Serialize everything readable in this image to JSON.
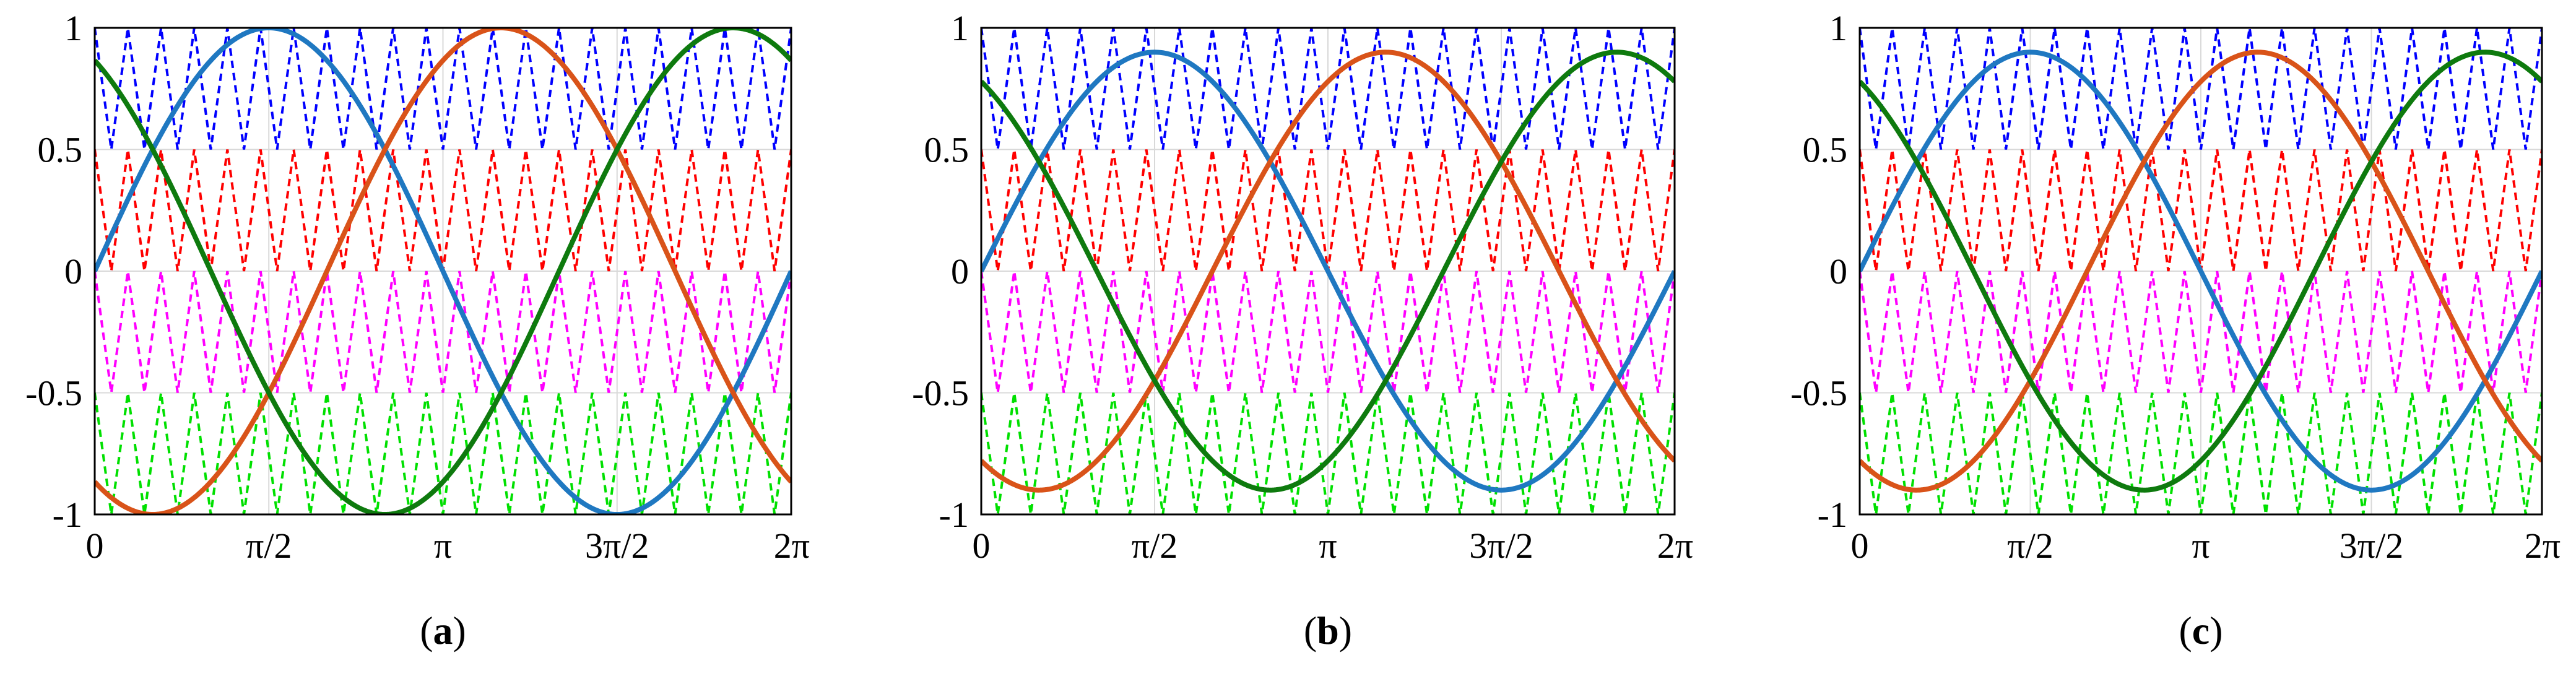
{
  "colors": {
    "phase_a": "#1f78c1",
    "phase_b": "#d95319",
    "phase_c": "#0e7a0e",
    "carrier_1": "#0000ff",
    "carrier_2": "#ff0000",
    "carrier_3": "#ff00ff",
    "carrier_4": "#00e000",
    "grid": "#d9d9d9",
    "axes": "#000000"
  },
  "chart_data": [
    {
      "type": "line",
      "label_text": "a",
      "x_ticks": [
        "0",
        "π/2",
        "π",
        "3π/2",
        "2π"
      ],
      "y_ticks": [
        "1",
        "0.5",
        "0",
        "-0.5",
        "-1"
      ],
      "xlim": [
        0,
        6.2832
      ],
      "ylim": [
        -1,
        1
      ],
      "grid": true,
      "modulation_amplitude": 1.0,
      "series": [
        {
          "role": "phase_a",
          "function": "A*sin(x)",
          "style": "solid"
        },
        {
          "role": "phase_b",
          "function": "A*sin(x - 2π/3)",
          "style": "solid"
        },
        {
          "role": "phase_c",
          "function": "A*sin(x + 2π/3)",
          "style": "solid"
        }
      ],
      "carriers": {
        "style": "dashed",
        "cycles_per_period": 21,
        "bands": [
          [
            0.5,
            1
          ],
          [
            0,
            0.5
          ],
          [
            -0.5,
            0
          ],
          [
            -1,
            -0.5
          ]
        ]
      }
    },
    {
      "type": "line",
      "label_text": "b",
      "x_ticks": [
        "0",
        "π/2",
        "π",
        "3π/2",
        "2π"
      ],
      "y_ticks": [
        "1",
        "0.5",
        "0",
        "-0.5",
        "-1"
      ],
      "xlim": [
        0,
        6.2832
      ],
      "ylim": [
        -1,
        1
      ],
      "grid": true,
      "modulation_amplitude": 0.9,
      "series": [
        {
          "role": "phase_a",
          "function": "A*sin(x)",
          "style": "solid"
        },
        {
          "role": "phase_b",
          "function": "A*sin(x - 2π/3)",
          "style": "solid"
        },
        {
          "role": "phase_c",
          "function": "A*sin(x + 2π/3)",
          "style": "solid"
        }
      ],
      "carriers": {
        "style": "dashed",
        "cycles_per_period": 21,
        "bands": [
          [
            0.5,
            1
          ],
          [
            0,
            0.5
          ],
          [
            -0.5,
            0
          ],
          [
            -1,
            -0.5
          ]
        ]
      }
    },
    {
      "type": "line",
      "label_text": "c",
      "x_ticks": [
        "0",
        "π/2",
        "π",
        "3π/2",
        "2π"
      ],
      "y_ticks": [
        "1",
        "0.5",
        "0",
        "-0.5",
        "-1"
      ],
      "xlim": [
        0,
        6.2832
      ],
      "ylim": [
        -1,
        1
      ],
      "grid": true,
      "modulation_amplitude": 0.9,
      "series": [
        {
          "role": "phase_a",
          "function": "A*sin(x)",
          "style": "solid"
        },
        {
          "role": "phase_b",
          "function": "A*sin(x - 2π/3)",
          "style": "solid"
        },
        {
          "role": "phase_c",
          "function": "A*sin(x + 2π/3)",
          "style": "solid"
        }
      ],
      "carriers": {
        "style": "dashed",
        "cycles_per_period": 21,
        "bands": [
          [
            0.5,
            1
          ],
          [
            0,
            0.5
          ],
          [
            -0.5,
            0
          ],
          [
            -1,
            -0.5
          ]
        ]
      }
    }
  ]
}
